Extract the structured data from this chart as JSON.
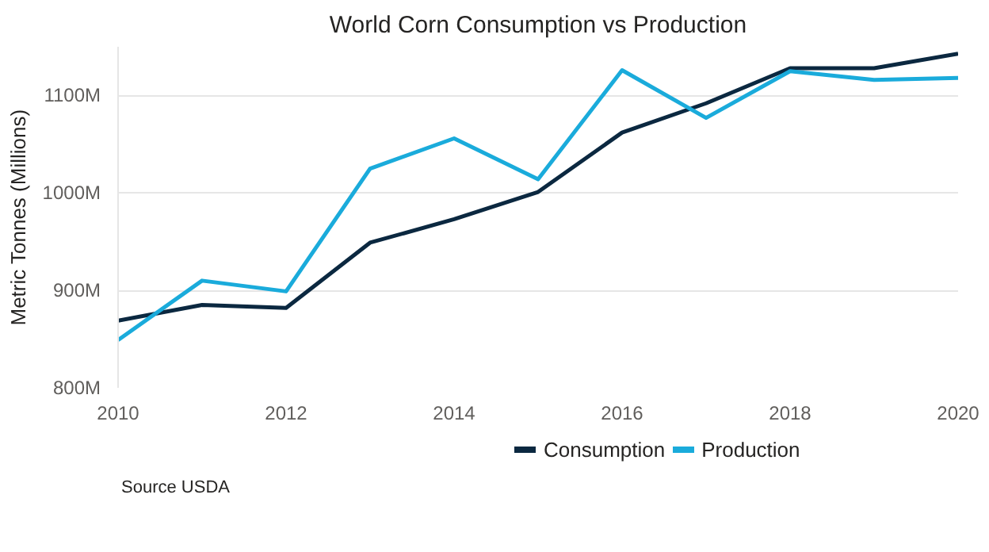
{
  "chart_data": {
    "type": "line",
    "title": "World Corn Consumption vs Production",
    "ylabel": "Metric Tonnes (Millions)",
    "x": [
      2010,
      2011,
      2012,
      2013,
      2014,
      2015,
      2016,
      2017,
      2018,
      2019,
      2020
    ],
    "series": [
      {
        "name": "Consumption",
        "color": "#0b2840",
        "values": [
          869,
          885,
          882,
          949,
          973,
          1001,
          1062,
          1092,
          1128,
          1128,
          1143
        ]
      },
      {
        "name": "Production",
        "color": "#1aabdb",
        "values": [
          849,
          910,
          899,
          1025,
          1056,
          1014,
          1126,
          1077,
          1125,
          1116,
          1118
        ]
      }
    ],
    "xlim": [
      2010,
      2020
    ],
    "ylim": [
      800,
      1150
    ],
    "xticks": [
      2010,
      2012,
      2014,
      2016,
      2018,
      2020
    ],
    "yticks": [
      {
        "value": 800,
        "label": "800M"
      },
      {
        "value": 900,
        "label": "900M"
      },
      {
        "value": 1000,
        "label": "1000M"
      },
      {
        "value": 1100,
        "label": "1100M"
      }
    ],
    "grid": "y",
    "legend": "bottom",
    "marker": "none",
    "line_style": "solid",
    "annotations": [
      "Source USDA"
    ]
  }
}
